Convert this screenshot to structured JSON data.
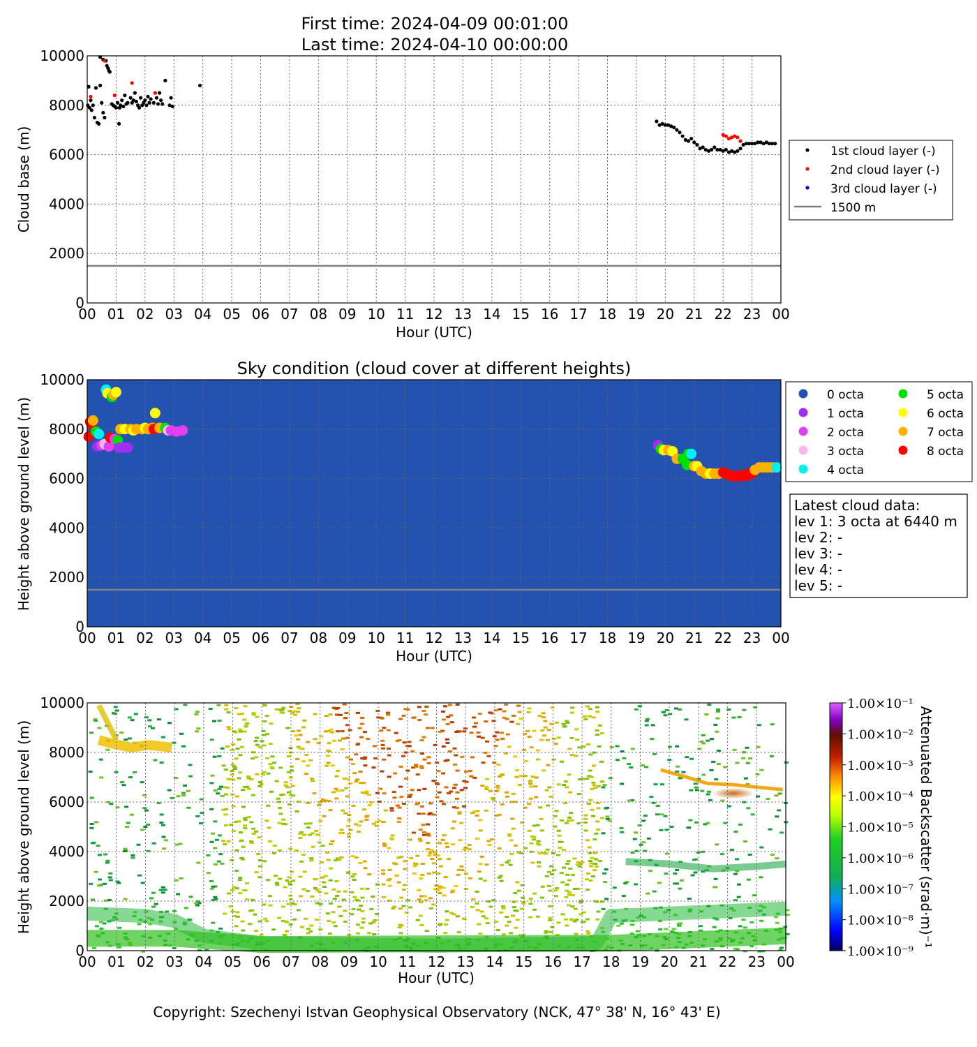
{
  "title_lines": [
    "First time: 2024-04-09 00:01:00",
    "Last time: 2024-04-10 00:00:00"
  ],
  "copyright": "Copyright: Szechenyi Istvan Geophysical Observatory (NCK, 47° 38' N, 16° 43' E)",
  "colors": {
    "layer1": "#000000",
    "layer2": "#ff0000",
    "layer3": "#0000ff",
    "threshold_line": "#808080",
    "sky_background": "#2352b0"
  },
  "chart_data": [
    {
      "type": "scatter",
      "title": "",
      "xlabel": "Hour (UTC)",
      "ylabel": "Cloud base (m)",
      "xlim": [
        0,
        24
      ],
      "ylim": [
        0,
        10000
      ],
      "x_ticks": [
        "00",
        "01",
        "02",
        "03",
        "04",
        "05",
        "06",
        "07",
        "08",
        "09",
        "10",
        "11",
        "12",
        "13",
        "14",
        "15",
        "16",
        "17",
        "18",
        "19",
        "20",
        "21",
        "22",
        "23",
        "00"
      ],
      "y_ticks": [
        0,
        2000,
        4000,
        6000,
        8000,
        10000
      ],
      "grid": true,
      "legend_position": "right",
      "reference_line": {
        "name": "1500 m",
        "y": 1500
      },
      "series": [
        {
          "name": "1st cloud layer (-)",
          "color": "#000000",
          "points": [
            [
              0.02,
              8000
            ],
            [
              0.05,
              8750
            ],
            [
              0.08,
              7900
            ],
            [
              0.12,
              8200
            ],
            [
              0.15,
              7800
            ],
            [
              0.2,
              8000
            ],
            [
              0.25,
              7500
            ],
            [
              0.3,
              8700
            ],
            [
              0.35,
              7300
            ],
            [
              0.4,
              7250
            ],
            [
              0.45,
              8800
            ],
            [
              0.45,
              9950
            ],
            [
              0.5,
              8100
            ],
            [
              0.55,
              7700
            ],
            [
              0.55,
              9850
            ],
            [
              0.6,
              7500
            ],
            [
              0.65,
              9800
            ],
            [
              0.68,
              9600
            ],
            [
              0.72,
              9500
            ],
            [
              0.75,
              9400
            ],
            [
              0.78,
              9350
            ],
            [
              0.85,
              8050
            ],
            [
              0.9,
              8000
            ],
            [
              0.95,
              7950
            ],
            [
              1.0,
              7900
            ],
            [
              1.05,
              8100
            ],
            [
              1.1,
              7250
            ],
            [
              1.12,
              7900
            ],
            [
              1.15,
              8000
            ],
            [
              1.2,
              8200
            ],
            [
              1.25,
              7950
            ],
            [
              1.3,
              8400
            ],
            [
              1.35,
              8050
            ],
            [
              1.4,
              8100
            ],
            [
              1.5,
              8300
            ],
            [
              1.55,
              8100
            ],
            [
              1.6,
              8200
            ],
            [
              1.65,
              8500
            ],
            [
              1.7,
              8150
            ],
            [
              1.75,
              8000
            ],
            [
              1.8,
              7900
            ],
            [
              1.85,
              8300
            ],
            [
              1.9,
              8000
            ],
            [
              1.95,
              8100
            ],
            [
              2.0,
              8200
            ],
            [
              2.05,
              8000
            ],
            [
              2.1,
              8350
            ],
            [
              2.15,
              8100
            ],
            [
              2.2,
              8250
            ],
            [
              2.3,
              8100
            ],
            [
              2.4,
              8300
            ],
            [
              2.45,
              8050
            ],
            [
              2.5,
              8500
            ],
            [
              2.55,
              8200
            ],
            [
              2.6,
              8050
            ],
            [
              2.7,
              9000
            ],
            [
              2.85,
              8000
            ],
            [
              2.9,
              8300
            ],
            [
              2.95,
              7950
            ],
            [
              3.9,
              8800
            ],
            [
              19.7,
              7350
            ],
            [
              19.8,
              7200
            ],
            [
              19.9,
              7250
            ],
            [
              20.0,
              7200
            ],
            [
              20.1,
              7200
            ],
            [
              20.2,
              7150
            ],
            [
              20.3,
              7100
            ],
            [
              20.4,
              7000
            ],
            [
              20.5,
              6900
            ],
            [
              20.6,
              6750
            ],
            [
              20.7,
              6600
            ],
            [
              20.8,
              6550
            ],
            [
              20.9,
              6650
            ],
            [
              21.0,
              6500
            ],
            [
              21.1,
              6400
            ],
            [
              21.2,
              6250
            ],
            [
              21.3,
              6300
            ],
            [
              21.4,
              6200
            ],
            [
              21.5,
              6150
            ],
            [
              21.6,
              6200
            ],
            [
              21.7,
              6300
            ],
            [
              21.8,
              6200
            ],
            [
              21.9,
              6200
            ],
            [
              22.0,
              6150
            ],
            [
              22.1,
              6200
            ],
            [
              22.2,
              6100
            ],
            [
              22.3,
              6150
            ],
            [
              22.4,
              6100
            ],
            [
              22.5,
              6150
            ],
            [
              22.6,
              6250
            ],
            [
              22.7,
              6400
            ],
            [
              22.8,
              6450
            ],
            [
              22.9,
              6450
            ],
            [
              23.0,
              6450
            ],
            [
              23.1,
              6450
            ],
            [
              23.2,
              6500
            ],
            [
              23.3,
              6500
            ],
            [
              23.4,
              6450
            ],
            [
              23.5,
              6500
            ],
            [
              23.6,
              6450
            ],
            [
              23.7,
              6450
            ],
            [
              23.8,
              6450
            ]
          ]
        },
        {
          "name": "2nd cloud layer (-)",
          "color": "#ff0000",
          "points": [
            [
              0.12,
              8350
            ],
            [
              0.6,
              9800
            ],
            [
              0.95,
              8400
            ],
            [
              1.55,
              8900
            ],
            [
              2.35,
              8500
            ],
            [
              22.0,
              6800
            ],
            [
              22.1,
              6750
            ],
            [
              22.2,
              6650
            ],
            [
              22.3,
              6700
            ],
            [
              22.4,
              6750
            ],
            [
              22.5,
              6700
            ],
            [
              22.6,
              6550
            ]
          ]
        },
        {
          "name": "3rd cloud layer (-)",
          "color": "#0000ff",
          "points": []
        }
      ]
    },
    {
      "type": "scatter",
      "title": "Sky condition (cloud cover at different heights)",
      "xlabel": "Hour (UTC)",
      "ylabel": "Height above ground level (m)",
      "xlim": [
        0,
        24
      ],
      "ylim": [
        0,
        10000
      ],
      "x_ticks": [
        "00",
        "01",
        "02",
        "03",
        "04",
        "05",
        "06",
        "07",
        "08",
        "09",
        "10",
        "11",
        "12",
        "13",
        "14",
        "15",
        "16",
        "17",
        "18",
        "19",
        "20",
        "21",
        "22",
        "23",
        "00"
      ],
      "y_ticks": [
        0,
        2000,
        4000,
        6000,
        8000,
        10000
      ],
      "grid": true,
      "legend_position": "right",
      "reference_line": {
        "y": 1500
      },
      "octa_colors": [
        "#2352b0",
        "#a030f0",
        "#e040f0",
        "#f8b8f0",
        "#00f0f0",
        "#00e000",
        "#ffff00",
        "#ffb000",
        "#ff0000"
      ],
      "legend": [
        "0 octa",
        "1 octa",
        "2 octa",
        "3 octa",
        "4 octa",
        "5 octa",
        "6 octa",
        "7 octa",
        "8 octa"
      ],
      "points": [
        [
          0.05,
          7700,
          8
        ],
        [
          0.1,
          8300,
          8
        ],
        [
          0.15,
          8200,
          8
        ],
        [
          0.2,
          8350,
          7
        ],
        [
          0.3,
          7900,
          5
        ],
        [
          0.35,
          7300,
          1
        ],
        [
          0.4,
          7800,
          4
        ],
        [
          0.5,
          7350,
          2
        ],
        [
          0.6,
          7400,
          3
        ],
        [
          0.65,
          9600,
          4
        ],
        [
          0.7,
          9450,
          6
        ],
        [
          0.75,
          7300,
          2
        ],
        [
          0.8,
          7650,
          8
        ],
        [
          0.85,
          9300,
          5
        ],
        [
          0.9,
          9400,
          7
        ],
        [
          0.95,
          7600,
          2
        ],
        [
          1.0,
          9500,
          6
        ],
        [
          1.05,
          7550,
          5
        ],
        [
          1.1,
          7250,
          1
        ],
        [
          1.15,
          8000,
          7
        ],
        [
          1.25,
          7250,
          1
        ],
        [
          1.3,
          8000,
          6
        ],
        [
          1.4,
          7250,
          1
        ],
        [
          1.5,
          8000,
          7
        ],
        [
          1.6,
          7950,
          6
        ],
        [
          1.7,
          8000,
          7
        ],
        [
          1.9,
          8000,
          7
        ],
        [
          2.0,
          8050,
          6
        ],
        [
          2.1,
          8000,
          7
        ],
        [
          2.25,
          8050,
          7
        ],
        [
          2.3,
          8000,
          8
        ],
        [
          2.35,
          8650,
          6
        ],
        [
          2.5,
          8050,
          7
        ],
        [
          2.7,
          8050,
          5
        ],
        [
          2.8,
          7950,
          3
        ],
        [
          2.9,
          7950,
          2
        ],
        [
          3.1,
          7900,
          2
        ],
        [
          3.3,
          7950,
          2
        ],
        [
          19.75,
          7350,
          1
        ],
        [
          19.85,
          7200,
          5
        ],
        [
          19.95,
          7150,
          6
        ],
        [
          20.1,
          7150,
          7
        ],
        [
          20.25,
          7100,
          6
        ],
        [
          20.4,
          6800,
          7
        ],
        [
          20.6,
          6800,
          5
        ],
        [
          20.75,
          6550,
          5
        ],
        [
          20.8,
          7000,
          5
        ],
        [
          20.9,
          7000,
          4
        ],
        [
          21.0,
          6500,
          7
        ],
        [
          21.1,
          6500,
          6
        ],
        [
          21.25,
          6300,
          7
        ],
        [
          21.4,
          6200,
          7
        ],
        [
          21.55,
          6200,
          6
        ],
        [
          21.7,
          6200,
          7
        ],
        [
          21.85,
          6200,
          7
        ],
        [
          22.0,
          6250,
          8
        ],
        [
          22.1,
          6200,
          8
        ],
        [
          22.2,
          6150,
          8
        ],
        [
          22.3,
          6100,
          8
        ],
        [
          22.4,
          6100,
          8
        ],
        [
          22.5,
          6100,
          8
        ],
        [
          22.6,
          6100,
          8
        ],
        [
          22.7,
          6150,
          8
        ],
        [
          22.8,
          6100,
          8
        ],
        [
          22.9,
          6200,
          8
        ],
        [
          23.0,
          6200,
          8
        ],
        [
          23.1,
          6350,
          7
        ],
        [
          23.25,
          6450,
          7
        ],
        [
          23.4,
          6450,
          7
        ],
        [
          23.55,
          6450,
          7
        ],
        [
          23.7,
          6450,
          7
        ],
        [
          23.85,
          6450,
          4
        ]
      ]
    },
    {
      "type": "heatmap",
      "title": "",
      "xlabel": "Hour (UTC)",
      "ylabel": "Height above ground level (m)",
      "xlim": [
        0,
        24
      ],
      "ylim": [
        0,
        10000
      ],
      "x_ticks": [
        "00",
        "01",
        "02",
        "03",
        "04",
        "05",
        "06",
        "07",
        "08",
        "09",
        "10",
        "11",
        "12",
        "13",
        "14",
        "15",
        "16",
        "17",
        "18",
        "19",
        "20",
        "21",
        "22",
        "23",
        "00"
      ],
      "y_ticks": [
        0,
        2000,
        4000,
        6000,
        8000,
        10000
      ],
      "colorbar_label": "Attenuated Backscatter (srad·m)⁻¹",
      "colorbar_ticks": [
        "1.00×10⁻¹",
        "1.00×10⁻²",
        "1.00×10⁻³",
        "1.00×10⁻⁴",
        "1.00×10⁻⁵",
        "1.00×10⁻⁶",
        "1.00×10⁻⁷",
        "1.00×10⁻⁸",
        "1.00×10⁻⁹"
      ],
      "colorbar_range_log10": [
        -9,
        -1
      ]
    }
  ],
  "latest": {
    "heading": "Latest cloud data:",
    "lines": [
      "lev 1: 3 octa at 6440 m",
      "lev 2: -",
      "lev 3: -",
      "lev 4: -",
      "lev 5: -"
    ]
  }
}
